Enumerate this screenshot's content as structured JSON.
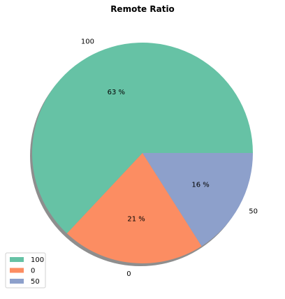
{
  "chart_data": {
    "type": "pie",
    "title": "Remote Ratio",
    "categories": [
      "100",
      "0",
      "50"
    ],
    "values": [
      63,
      21,
      16
    ],
    "percent_labels": [
      "63 %",
      "21 %",
      "16 %"
    ],
    "colors": [
      "#66c2a5",
      "#fc8d62",
      "#8da0cb"
    ],
    "shadow": true,
    "legend": {
      "position": "lower-left",
      "entries": [
        "100",
        "0",
        "50"
      ]
    }
  }
}
